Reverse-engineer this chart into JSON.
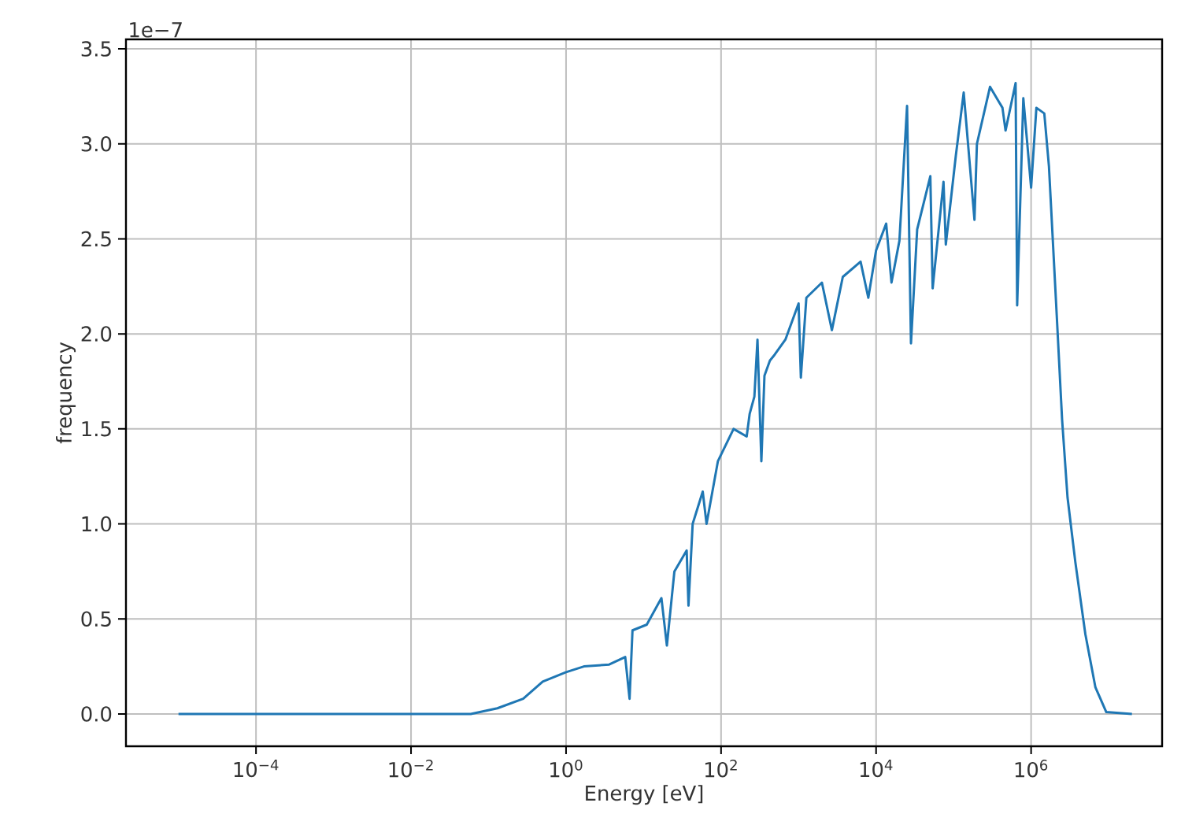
{
  "chart_data": {
    "type": "line",
    "xlabel": "Energy [eV]",
    "ylabel": "frequency",
    "log": "x",
    "grid": true,
    "marker": "none",
    "line_style": "solid",
    "annotations": [
      "1e−7"
    ],
    "xlim": [
      2.1e-06,
      49000000.0
    ],
    "ylim": [
      -0.17,
      3.55
    ],
    "xticks": [
      {
        "value": 0.0001,
        "label": "10$^{−4}$"
      },
      {
        "value": 0.01,
        "label": "10$^{−2}$"
      },
      {
        "value": 1,
        "label": "10$^{0}$"
      },
      {
        "value": 100,
        "label": "10$^{2}$"
      },
      {
        "value": 10000,
        "label": "10$^{4}$"
      },
      {
        "value": 1000000,
        "label": "10$^{6}$"
      }
    ],
    "yticks": [
      {
        "value": 0,
        "label": "0.0"
      },
      {
        "value": 0.5,
        "label": "0.5"
      },
      {
        "value": 1,
        "label": "1.0"
      },
      {
        "value": 1.5,
        "label": "1.5"
      },
      {
        "value": 2,
        "label": "2.0"
      },
      {
        "value": 2.5,
        "label": "2.5"
      },
      {
        "value": 3,
        "label": "3.0"
      },
      {
        "value": 3.5,
        "label": "3.5"
      }
    ],
    "series": [
      {
        "color": "#1f77b4",
        "x": [
          1e-05,
          0.01,
          0.059,
          0.13,
          0.28,
          0.5,
          1,
          1.7,
          3.6,
          5.8,
          6.6,
          7.2,
          11,
          17,
          20,
          25,
          36,
          38,
          43,
          58,
          65,
          91,
          145,
          214,
          234,
          269,
          295,
          331,
          363,
          427,
          490,
          676,
          1000,
          1070,
          1260,
          2000,
          2690,
          3720,
          6310,
          7940,
          10000,
          13500,
          15800,
          20000,
          25100,
          28200,
          33900,
          50100,
          53700,
          74100,
          79400,
          107000,
          135000,
          186000,
          200000,
          295000,
          427000,
          468000,
          631000,
          661000,
          794000,
          1000000,
          1170000,
          1480000,
          1700000,
          2140000,
          2510000,
          2950000,
          3720000,
          5010000,
          6760000,
          9330000,
          20000000
        ],
        "values": [
          0,
          0,
          0,
          0.03,
          0.08,
          0.17,
          0.22,
          0.25,
          0.26,
          0.3,
          0.08,
          0.44,
          0.47,
          0.61,
          0.36,
          0.75,
          0.86,
          0.57,
          1.0,
          1.17,
          1.0,
          1.33,
          1.5,
          1.46,
          1.58,
          1.67,
          1.97,
          1.33,
          1.78,
          1.86,
          1.89,
          1.97,
          2.16,
          1.77,
          2.19,
          2.27,
          2.02,
          2.3,
          2.38,
          2.19,
          2.44,
          2.58,
          2.27,
          2.49,
          3.2,
          1.95,
          2.55,
          2.83,
          2.24,
          2.8,
          2.47,
          2.94,
          3.27,
          2.6,
          3.0,
          3.3,
          3.19,
          3.07,
          3.32,
          2.15,
          3.24,
          2.77,
          3.19,
          3.16,
          2.88,
          2.1,
          1.55,
          1.14,
          0.8,
          0.42,
          0.14,
          0.01,
          0
        ]
      }
    ]
  }
}
